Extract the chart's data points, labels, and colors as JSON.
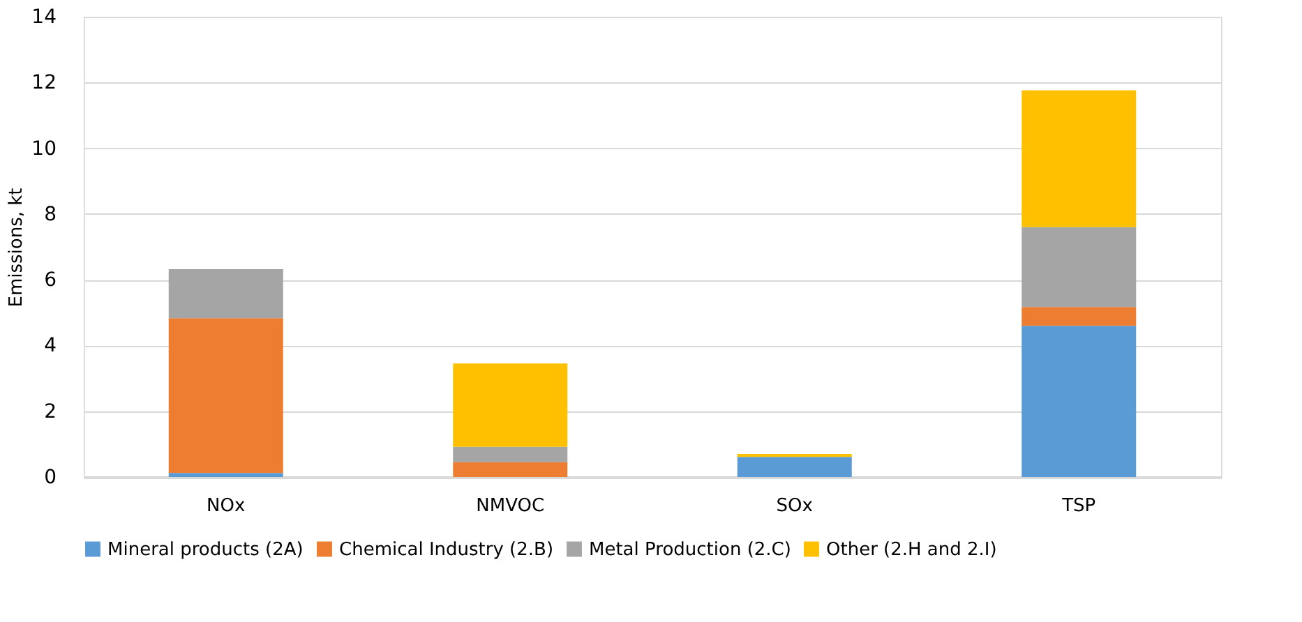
{
  "chart_data": {
    "type": "bar",
    "stacked": true,
    "ylabel": "Emissions, kt",
    "categories": [
      "NOx",
      "NMVOC",
      "SOx",
      "TSP"
    ],
    "series": [
      {
        "name": "Mineral products (2A)",
        "color": "#5b9bd5",
        "values": [
          0.12,
          0,
          0.61,
          4.6
        ]
      },
      {
        "name": "Chemical Industry (2.B)",
        "color": "#ed7d31",
        "values": [
          4.71,
          0.45,
          0,
          0.57
        ]
      },
      {
        "name": "Metal Production (2.C)",
        "color": "#a5a5a5",
        "values": [
          1.49,
          0.47,
          0,
          2.43
        ]
      },
      {
        "name": "Other (2.H and 2.I)",
        "color": "#ffc000",
        "values": [
          0,
          2.53,
          0.09,
          4.16
        ]
      }
    ],
    "ylim": [
      0,
      14
    ],
    "yticks": [
      0,
      2,
      4,
      6,
      8,
      10,
      12,
      14
    ],
    "grid": "y",
    "legend": "bottom"
  }
}
